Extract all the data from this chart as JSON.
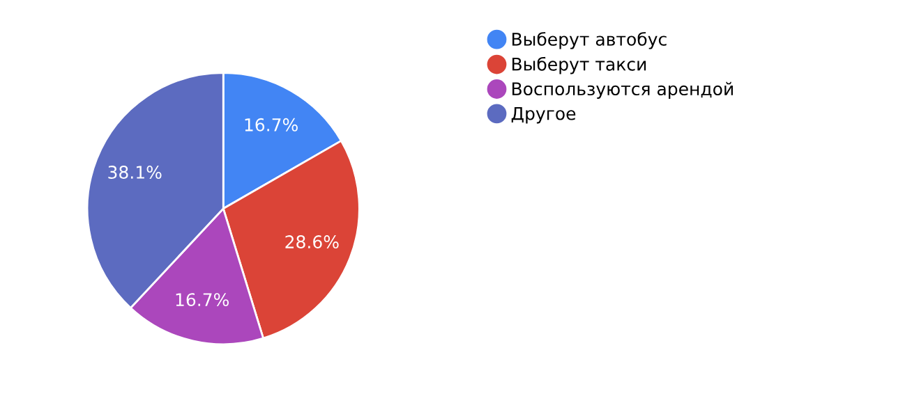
{
  "chart_data": {
    "type": "pie",
    "categories": [
      "Выберут автобус",
      "Выберут такси",
      "Воспользуются арендой",
      "Другое"
    ],
    "values": [
      16.7,
      28.6,
      16.7,
      38.1
    ],
    "colors": [
      "#4285f4",
      "#db4437",
      "#ab47bc",
      "#5c6bc0"
    ],
    "value_labels": [
      "16.7%",
      "28.6%",
      "16.7%",
      "38.1%"
    ],
    "legend": "right"
  }
}
